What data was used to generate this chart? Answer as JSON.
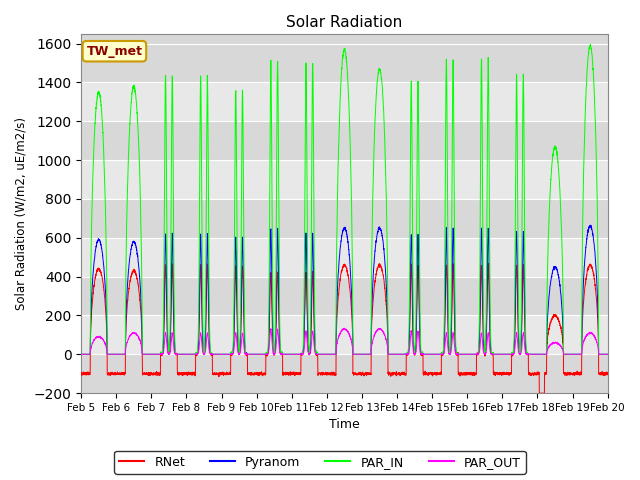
{
  "title": "Solar Radiation",
  "ylabel": "Solar Radiation (W/m2, uE/m2/s)",
  "xlabel": "Time",
  "ylim": [
    -200,
    1650
  ],
  "xlim": [
    0,
    15
  ],
  "yticks": [
    -200,
    0,
    200,
    400,
    600,
    800,
    1000,
    1200,
    1400,
    1600
  ],
  "xtick_labels": [
    "Feb 5",
    "Feb 6",
    "Feb 7",
    "Feb 8",
    "Feb 9",
    "Feb 10",
    "Feb 11",
    "Feb 12",
    "Feb 13",
    "Feb 14",
    "Feb 15",
    "Feb 16",
    "Feb 17",
    "Feb 18",
    "Feb 19",
    "Feb 20"
  ],
  "site_label": "TW_met",
  "colors": {
    "RNet": "#ff0000",
    "Pyranom": "#0000ff",
    "PAR_IN": "#00ff00",
    "PAR_OUT": "#ff00ff"
  },
  "legend_labels": [
    "RNet",
    "Pyranom",
    "PAR_IN",
    "PAR_OUT"
  ],
  "band_colors": [
    "#d8d8d8",
    "#e8e8e8"
  ],
  "fig_background": "#ffffff",
  "grid_color": "#ffffff"
}
